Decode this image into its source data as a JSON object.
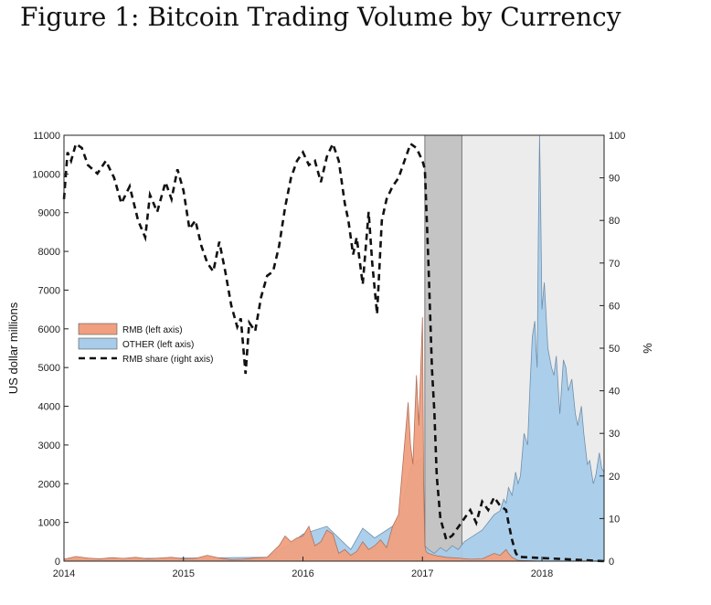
{
  "title": "Figure 1: Bitcoin Trading Volume by Currency",
  "chart_data": {
    "type": "area",
    "title": "Bitcoin Trading Volume by Currency",
    "xlabel": "",
    "ylabel": "US dollar millions",
    "y2label": "%",
    "xlim": [
      2014.0,
      2018.52
    ],
    "ylim": [
      0,
      11000
    ],
    "y2lim": [
      0,
      100
    ],
    "xticks": [
      "2014",
      "2015",
      "2016",
      "2017",
      "2018"
    ],
    "yticks": [
      "0",
      "1000",
      "2000",
      "3000",
      "4000",
      "5000",
      "6000",
      "7000",
      "8000",
      "9000",
      "10000",
      "11000"
    ],
    "y2ticks": [
      "0",
      "10",
      "20",
      "30",
      "40",
      "50",
      "60",
      "70",
      "80",
      "90",
      "100"
    ],
    "legend": {
      "position": "center-left",
      "entries": [
        {
          "label": "RMB (left axis)",
          "kind": "area",
          "color": "#f0a07f"
        },
        {
          "label": "OTHER (left axis)",
          "kind": "area",
          "color": "#a8ccea"
        },
        {
          "label": "RMB share (right axis)",
          "kind": "dashed-line",
          "color": "#111111"
        }
      ]
    },
    "shaded_regions": [
      {
        "x0": 2017.02,
        "x1": 2017.33,
        "color": "#c4c4c4"
      },
      {
        "x0": 2017.33,
        "x1": 2018.52,
        "color": "#ececec"
      }
    ],
    "series": [
      {
        "name": "RMB (left axis)",
        "axis": "left",
        "x": [
          2014.0,
          2014.1,
          2014.2,
          2014.3,
          2014.4,
          2014.5,
          2014.6,
          2014.7,
          2014.8,
          2014.9,
          2015.0,
          2015.1,
          2015.2,
          2015.3,
          2015.4,
          2015.5,
          2015.6,
          2015.7,
          2015.75,
          2015.8,
          2015.85,
          2015.9,
          2015.95,
          2016.0,
          2016.05,
          2016.1,
          2016.15,
          2016.2,
          2016.25,
          2016.3,
          2016.35,
          2016.4,
          2016.45,
          2016.5,
          2016.55,
          2016.6,
          2016.65,
          2016.7,
          2016.75,
          2016.8,
          2016.85,
          2016.88,
          2016.9,
          2016.92,
          2016.95,
          2016.97,
          2017.0,
          2017.01,
          2017.02,
          2017.03,
          2017.05,
          2017.1,
          2017.2,
          2017.3,
          2017.4,
          2017.5,
          2017.6,
          2017.65,
          2017.7,
          2017.72,
          2017.75,
          2017.8,
          2018.0,
          2018.52
        ],
        "values": [
          50,
          120,
          80,
          60,
          90,
          70,
          100,
          60,
          80,
          100,
          60,
          70,
          150,
          80,
          40,
          50,
          80,
          100,
          250,
          400,
          650,
          500,
          600,
          650,
          900,
          400,
          500,
          800,
          700,
          200,
          300,
          150,
          250,
          500,
          300,
          400,
          550,
          350,
          900,
          1200,
          3000,
          4100,
          3000,
          2500,
          4800,
          3500,
          6300,
          2000,
          400,
          250,
          200,
          150,
          100,
          80,
          50,
          60,
          200,
          150,
          300,
          200,
          100,
          20,
          0,
          0
        ]
      },
      {
        "name": "OTHER (left axis)",
        "axis": "left",
        "x": [
          2014.0,
          2015.0,
          2015.7,
          2015.9,
          2016.0,
          2016.2,
          2016.4,
          2016.5,
          2016.6,
          2016.8,
          2016.9,
          2017.0,
          2017.02,
          2017.05,
          2017.1,
          2017.15,
          2017.2,
          2017.25,
          2017.3,
          2017.35,
          2017.4,
          2017.45,
          2017.5,
          2017.55,
          2017.6,
          2017.65,
          2017.68,
          2017.7,
          2017.72,
          2017.75,
          2017.78,
          2017.8,
          2017.82,
          2017.85,
          2017.88,
          2017.9,
          2017.92,
          2017.94,
          2017.95,
          2017.96,
          2017.97,
          2017.98,
          2017.99,
          2018.0,
          2018.02,
          2018.05,
          2018.08,
          2018.1,
          2018.12,
          2018.15,
          2018.18,
          2018.2,
          2018.22,
          2018.25,
          2018.28,
          2018.3,
          2018.33,
          2018.35,
          2018.38,
          2018.4,
          2018.43,
          2018.45,
          2018.48,
          2018.5,
          2018.52
        ],
        "values": [
          60,
          80,
          100,
          450,
          700,
          900,
          300,
          850,
          600,
          1000,
          2400,
          2700,
          400,
          300,
          200,
          350,
          250,
          400,
          300,
          500,
          600,
          700,
          800,
          1000,
          1200,
          1300,
          1600,
          1500,
          1900,
          1700,
          2300,
          2000,
          2200,
          3300,
          3000,
          4500,
          5800,
          6200,
          5500,
          5000,
          8500,
          11000,
          9000,
          6500,
          7200,
          5500,
          5000,
          4800,
          5300,
          3800,
          5200,
          5000,
          4400,
          4700,
          3800,
          3500,
          4000,
          3300,
          2500,
          2600,
          2000,
          2200,
          2800,
          2400,
          2300
        ]
      },
      {
        "name": "RMB share (right axis)",
        "axis": "right",
        "x": [
          2014.0,
          2014.03,
          2014.06,
          2014.1,
          2014.15,
          2014.2,
          2014.28,
          2014.35,
          2014.42,
          2014.48,
          2014.55,
          2014.62,
          2014.68,
          2014.72,
          2014.78,
          2014.85,
          2014.9,
          2014.95,
          2015.0,
          2015.05,
          2015.1,
          2015.15,
          2015.2,
          2015.25,
          2015.3,
          2015.35,
          2015.4,
          2015.45,
          2015.48,
          2015.52,
          2015.55,
          2015.6,
          2015.65,
          2015.7,
          2015.75,
          2015.8,
          2015.85,
          2015.9,
          2015.95,
          2016.0,
          2016.05,
          2016.1,
          2016.15,
          2016.2,
          2016.25,
          2016.3,
          2016.35,
          2016.38,
          2016.42,
          2016.45,
          2016.5,
          2016.55,
          2016.58,
          2016.62,
          2016.66,
          2016.7,
          2016.75,
          2016.8,
          2016.85,
          2016.9,
          2016.95,
          2017.0,
          2017.02,
          2017.05,
          2017.08,
          2017.1,
          2017.12,
          2017.15,
          2017.2,
          2017.25,
          2017.3,
          2017.35,
          2017.4,
          2017.45,
          2017.5,
          2017.55,
          2017.6,
          2017.65,
          2017.7,
          2017.72,
          2017.75,
          2017.78,
          2017.8,
          2018.52
        ],
        "values": [
          85,
          96,
          94,
          98,
          97,
          93,
          91,
          94,
          90,
          84,
          88,
          80,
          76,
          86,
          82,
          89,
          85,
          92,
          87,
          78,
          80,
          74,
          70,
          68,
          75,
          68,
          60,
          55,
          57,
          44,
          56,
          54,
          62,
          67,
          68,
          74,
          83,
          90,
          94,
          96,
          93,
          94,
          89,
          95,
          98,
          94,
          84,
          80,
          72,
          76,
          65,
          82,
          70,
          58,
          80,
          85,
          88,
          90,
          94,
          98,
          97,
          94,
          92,
          70,
          45,
          35,
          20,
          10,
          5,
          6,
          8,
          10,
          12,
          9,
          14,
          12,
          15,
          13,
          12,
          9,
          5,
          2,
          1,
          0
        ]
      }
    ]
  }
}
